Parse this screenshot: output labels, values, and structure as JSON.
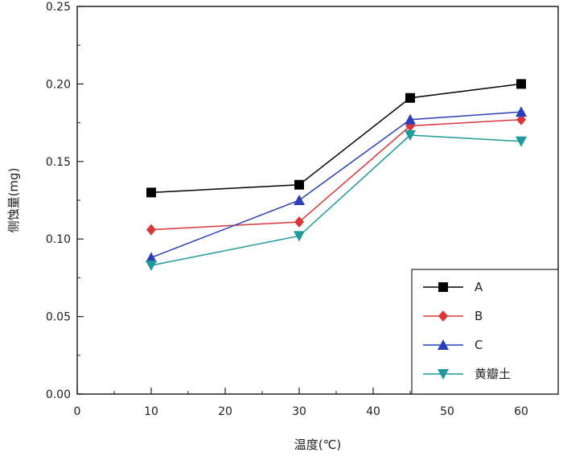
{
  "chart_data": {
    "type": "line",
    "xlabel": "温度(℃)",
    "ylabel": "侧蚀量(mg)",
    "xlim": [
      0,
      65
    ],
    "ylim": [
      0,
      0.25
    ],
    "xticks": [
      "0",
      "10",
      "20",
      "30",
      "40",
      "50",
      "60"
    ],
    "yticks": [
      "0.00",
      "0.05",
      "0.10",
      "0.15",
      "0.20",
      "0.25"
    ],
    "legend_position": "bottom-right",
    "x": [
      10,
      30,
      45,
      60
    ],
    "series": [
      {
        "name": "A",
        "values": [
          0.13,
          0.135,
          0.191,
          0.2
        ],
        "color": "#000000",
        "marker": "square"
      },
      {
        "name": "B",
        "values": [
          0.106,
          0.111,
          0.173,
          0.177
        ],
        "color": "#d9383a",
        "marker": "diamond"
      },
      {
        "name": "C",
        "values": [
          0.088,
          0.125,
          0.177,
          0.182
        ],
        "color": "#2b3fb8",
        "marker": "triangle-up"
      },
      {
        "name": "黄瓣土",
        "values": [
          0.083,
          0.102,
          0.167,
          0.163
        ],
        "color": "#1f9a9a",
        "marker": "triangle-down"
      }
    ]
  }
}
